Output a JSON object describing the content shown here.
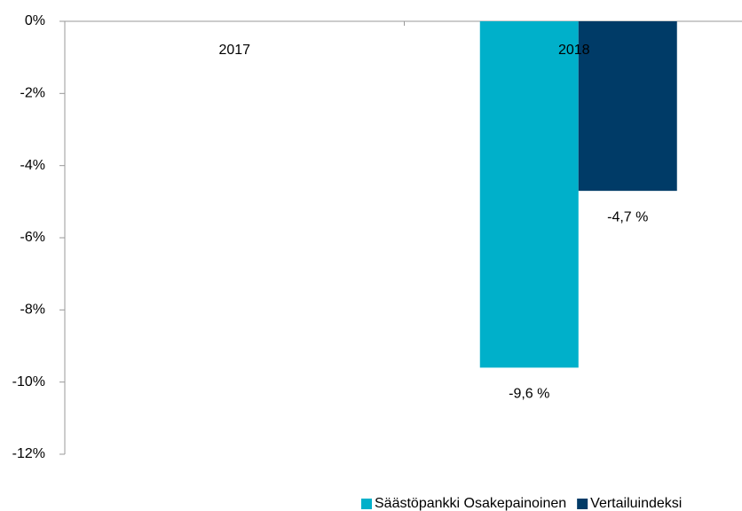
{
  "chart_data": {
    "type": "bar",
    "categories": [
      "2017",
      "2018"
    ],
    "series": [
      {
        "name": "Säästöpankki Osakepainoinen",
        "color": "#00b0ca",
        "values": [
          null,
          -9.6
        ],
        "value_labels": [
          null,
          "-9,6 %"
        ]
      },
      {
        "name": "Vertailuindeksi",
        "color": "#003b67",
        "values": [
          null,
          -4.7
        ],
        "value_labels": [
          null,
          "-4,7 %"
        ]
      }
    ],
    "ylim": [
      -12,
      0
    ],
    "yticks": [
      {
        "value": 0,
        "label": "0%"
      },
      {
        "value": -2,
        "label": "-2%"
      },
      {
        "value": -4,
        "label": "-4%"
      },
      {
        "value": -6,
        "label": "-6%"
      },
      {
        "value": -8,
        "label": "-8%"
      },
      {
        "value": -10,
        "label": "-10%"
      },
      {
        "value": -12,
        "label": "-12%"
      }
    ],
    "grid": false,
    "legend": "bottom"
  }
}
